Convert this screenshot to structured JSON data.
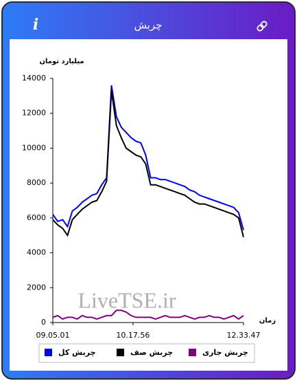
{
  "header": {
    "title": "چربش",
    "info_label": "i"
  },
  "chart_data": {
    "type": "line",
    "y_label": "میلیارد تومان",
    "x_label": "زمان",
    "watermark": "LiveTSE.ir",
    "x": [
      0,
      1,
      2,
      3,
      4,
      5,
      6,
      7,
      8,
      9,
      10,
      11,
      12,
      13,
      14,
      15,
      16,
      17,
      18,
      19,
      20,
      21,
      22,
      23,
      24,
      25,
      26,
      27,
      28,
      29,
      30,
      31,
      32,
      33,
      34,
      35,
      36,
      37,
      38,
      39
    ],
    "xlim": [
      0,
      39
    ],
    "xticks": [
      {
        "value": 0,
        "label": "09.05.01"
      },
      {
        "value": 16.4,
        "label": "10.17.56"
      },
      {
        "value": 39,
        "label": "12.33.47"
      }
    ],
    "ylim": [
      0,
      14000
    ],
    "yticks": [
      0,
      2000,
      4000,
      6000,
      8000,
      10000,
      12000,
      14000
    ],
    "grid": false,
    "series": [
      {
        "name": "چربش کل",
        "color": "#0000ff",
        "values": [
          6200,
          5800,
          5900,
          5500,
          6400,
          6600,
          6900,
          7100,
          7300,
          7400,
          7900,
          8300,
          13600,
          11800,
          11200,
          10900,
          10600,
          10400,
          10300,
          9600,
          8300,
          8300,
          8200,
          8200,
          8100,
          8000,
          7900,
          7800,
          7600,
          7500,
          7300,
          7200,
          7100,
          7000,
          6900,
          6800,
          6700,
          6600,
          6300,
          5300
        ]
      },
      {
        "name": "چربش صف",
        "color": "#000000",
        "values": [
          5900,
          5600,
          5400,
          5000,
          5900,
          6200,
          6500,
          6700,
          6900,
          7000,
          7500,
          8100,
          13300,
          11300,
          10600,
          10000,
          9800,
          9600,
          9500,
          9100,
          7900,
          7900,
          7800,
          7700,
          7600,
          7500,
          7400,
          7300,
          7100,
          6900,
          6800,
          6800,
          6700,
          6600,
          6500,
          6400,
          6300,
          6200,
          6000,
          4900
        ]
      },
      {
        "name": "چربش جاری",
        "color": "#800080",
        "values": [
          300,
          400,
          200,
          300,
          300,
          200,
          400,
          300,
          300,
          200,
          300,
          400,
          400,
          700,
          700,
          600,
          400,
          300,
          300,
          300,
          300,
          200,
          300,
          400,
          300,
          300,
          300,
          400,
          300,
          200,
          300,
          300,
          400,
          300,
          300,
          200,
          300,
          400,
          200,
          400
        ]
      }
    ]
  }
}
